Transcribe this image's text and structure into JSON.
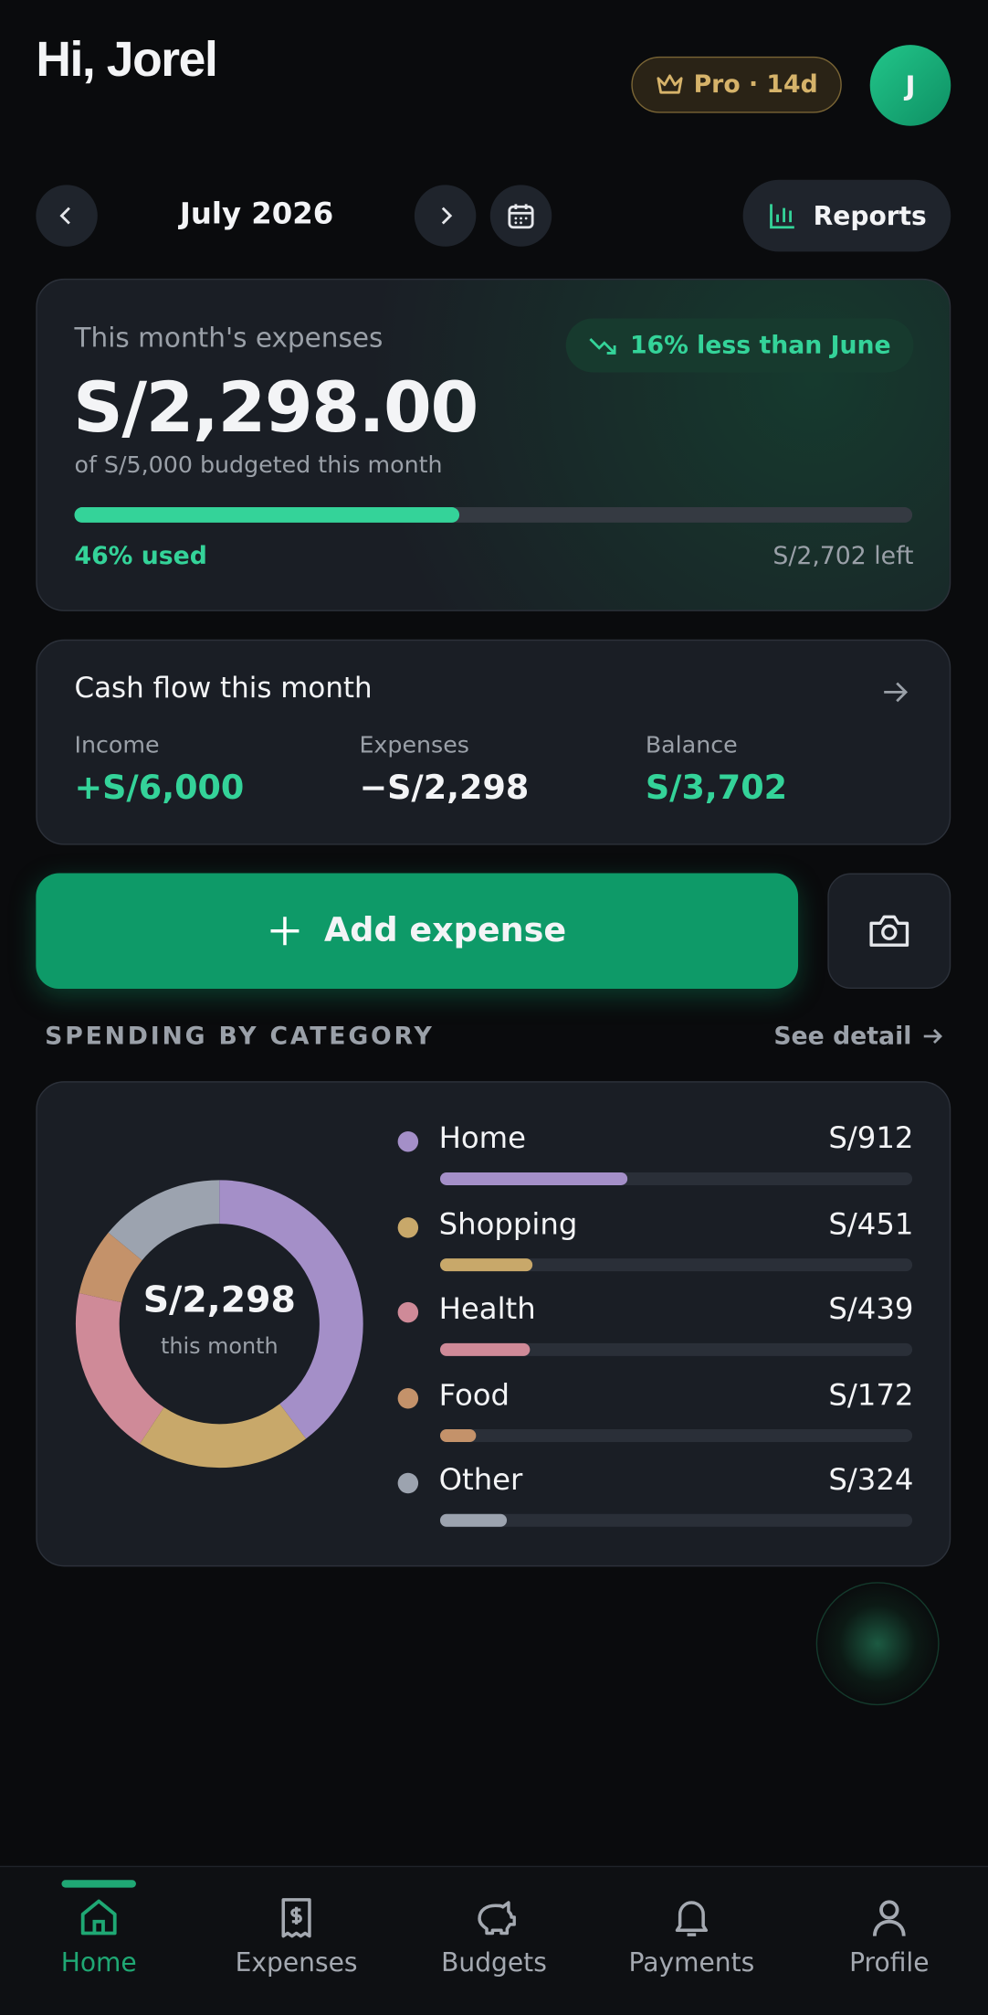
{
  "header": {
    "greeting": "Hi, Jorel",
    "badge": "Pro · 14d",
    "avatar": "J"
  },
  "period": {
    "label": "July 2026",
    "reports": "Reports"
  },
  "summary": {
    "title": "This month's expenses",
    "trend": "16% less than June",
    "amount": "S/2,298.00",
    "budget_note": "of S/5,000 budgeted this month",
    "used_percent": 46,
    "used_label": "46% used",
    "left": "S/2,702 left"
  },
  "cash_flow": {
    "title": "Cash flow this month",
    "items": [
      {
        "label": "Income",
        "value": "+S/6,000"
      },
      {
        "label": "Expenses",
        "value": "−S/2,298"
      },
      {
        "label": "Balance",
        "value": "S/3,702"
      }
    ]
  },
  "actions": {
    "add": "Add expense"
  },
  "spending": {
    "heading": "SPENDING BY CATEGORY",
    "link": "See detail",
    "total": "S/2,298",
    "total_caption": "this month",
    "categories": [
      {
        "name": "Home",
        "value": 912,
        "label": "S/912",
        "color": "#a48fc8"
      },
      {
        "name": "Shopping",
        "value": 451,
        "label": "S/451",
        "color": "#c8a86a"
      },
      {
        "name": "Health",
        "value": 439,
        "label": "S/439",
        "color": "#cf8a98"
      },
      {
        "name": "Food",
        "value": 172,
        "label": "S/172",
        "color": "#c4926a"
      },
      {
        "name": "Other",
        "value": 324,
        "label": "S/324",
        "color": "#9ca3af"
      }
    ]
  },
  "nav": {
    "items": [
      "Home",
      "Expenses",
      "Budgets",
      "Payments",
      "Profile"
    ],
    "active": 0
  }
}
